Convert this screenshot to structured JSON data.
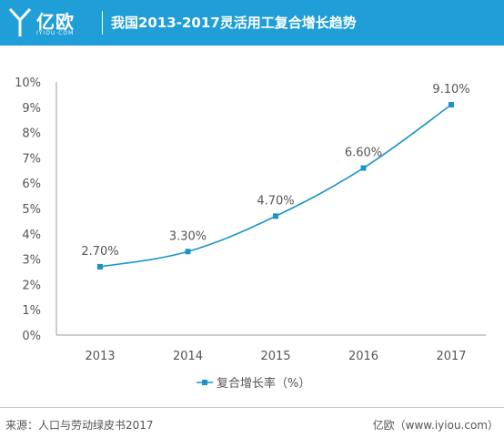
{
  "header": {
    "logo_text": "亿欧",
    "logo_sub": "IYIOU·COM",
    "title": "我国2013-2017灵活用工复合增长趋势"
  },
  "colors": {
    "header_bg": "#1f9ed8",
    "series": "#1b94c9"
  },
  "chart_data": {
    "type": "line",
    "title": "我国2013-2017灵活用工复合增长趋势",
    "categories": [
      "2013",
      "2014",
      "2015",
      "2016",
      "2017"
    ],
    "series": [
      {
        "name": "复合增长率（%）",
        "values": [
          2.7,
          3.3,
          4.7,
          6.6,
          9.1
        ]
      }
    ],
    "data_labels": [
      "2.70%",
      "3.30%",
      "4.70%",
      "6.60%",
      "9.10%"
    ],
    "y_ticks": [
      "0%",
      "1%",
      "2%",
      "3%",
      "4%",
      "5%",
      "6%",
      "7%",
      "8%",
      "9%",
      "10%"
    ],
    "ylim": [
      0,
      10
    ],
    "grid": false,
    "legend_position": "bottom"
  },
  "footer": {
    "source": "来源：人口与劳动绿皮书2017",
    "brand": "亿欧（www.iyiou.com）"
  }
}
